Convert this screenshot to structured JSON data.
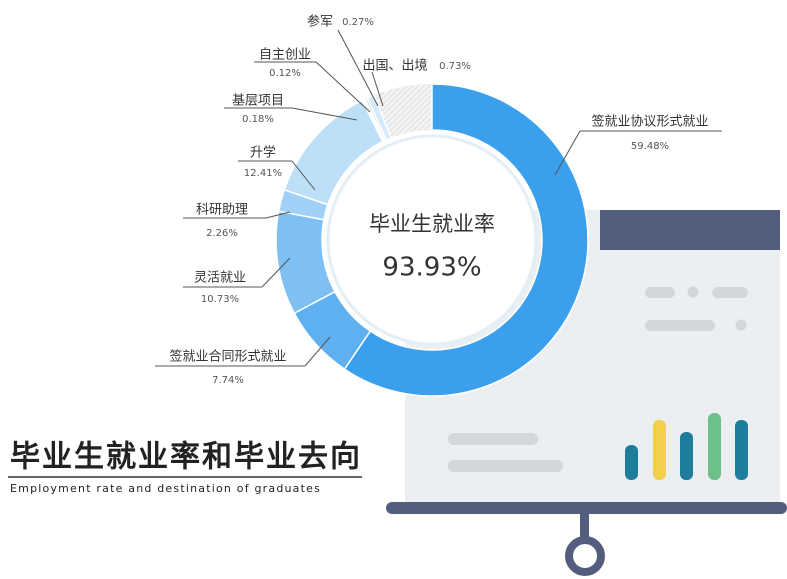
{
  "chart_data": {
    "type": "pie",
    "center_title": "毕业生就业率",
    "center_value_label": "93.93%",
    "title": "毕业生就业率和毕业去向",
    "subtitle": "Employment rate and destination of graduates",
    "categories": [
      "签就业协议形式就业",
      "签就业合同形式就业",
      "灵活就业",
      "科研助理",
      "升学",
      "基层项目",
      "自主创业",
      "参军",
      "出国、出境"
    ],
    "values": [
      59.48,
      7.74,
      10.73,
      2.26,
      12.41,
      0.18,
      0.12,
      0.27,
      0.73
    ],
    "value_labels": [
      "59.48%",
      "7.74%",
      "10.73%",
      "2.26%",
      "12.41%",
      "0.18%",
      "0.12%",
      "0.27%",
      "0.73%"
    ],
    "colors": [
      "#3a9fec",
      "#5eb0f0",
      "#7ec0f3",
      "#a1d0f6",
      "#bedff8",
      "#d4e9fa",
      "#d4e9fa",
      "#d4e9fa",
      "#d4e9fa"
    ]
  }
}
